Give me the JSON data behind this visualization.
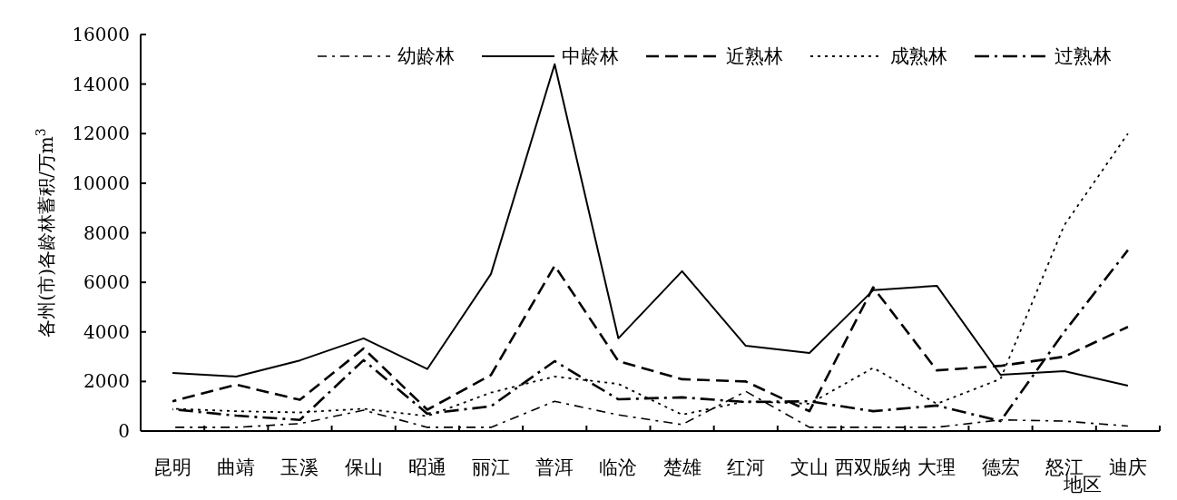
{
  "chart_data": {
    "type": "line",
    "xlabel": "地区",
    "ylabel": "各州(市)各龄林蓄积/万m$^{3}$",
    "categories": [
      "昆明",
      "曲靖",
      "玉溪",
      "保山",
      "昭通",
      "丽江",
      "普洱",
      "临沧",
      "楚雄",
      "红河",
      "文山",
      "西双版纳",
      "大理",
      "德宏",
      "怒江",
      "迪庆"
    ],
    "ylim": [
      0,
      16000
    ],
    "yticks": [
      0,
      2000,
      4000,
      6000,
      8000,
      10000,
      12000,
      14000,
      16000
    ],
    "grid": false,
    "legend": "top",
    "marker": "none",
    "series": [
      {
        "name": "幼龄林",
        "color": "#000000",
        "line_style": "dashdotdot",
        "values": [
          150,
          150,
          300,
          840,
          150,
          150,
          1200,
          650,
          260,
          1600,
          150,
          150,
          150,
          450,
          400,
          200
        ]
      },
      {
        "name": "中龄林",
        "color": "#000000",
        "line_style": "solid",
        "values": [
          2340,
          2200,
          2850,
          3740,
          2500,
          6340,
          14800,
          3740,
          6450,
          3440,
          3150,
          5680,
          5860,
          2270,
          2420,
          1830
        ]
      },
      {
        "name": "近熟林",
        "color": "#000000",
        "line_style": "dashed",
        "values": [
          1200,
          1870,
          1260,
          3330,
          860,
          2260,
          6670,
          2820,
          2090,
          2000,
          800,
          5800,
          2450,
          2630,
          3000,
          4200
        ]
      },
      {
        "name": "成熟林",
        "color": "#000000",
        "line_style": "dotted",
        "values": [
          900,
          800,
          750,
          900,
          600,
          1550,
          2200,
          1900,
          660,
          1200,
          1100,
          2550,
          1100,
          2100,
          8300,
          12000
        ]
      },
      {
        "name": "过熟林",
        "color": "#000000",
        "line_style": "dashdot",
        "values": [
          880,
          620,
          450,
          2860,
          700,
          1000,
          2820,
          1280,
          1360,
          1170,
          1200,
          800,
          1030,
          400,
          4000,
          7300
        ]
      }
    ]
  }
}
